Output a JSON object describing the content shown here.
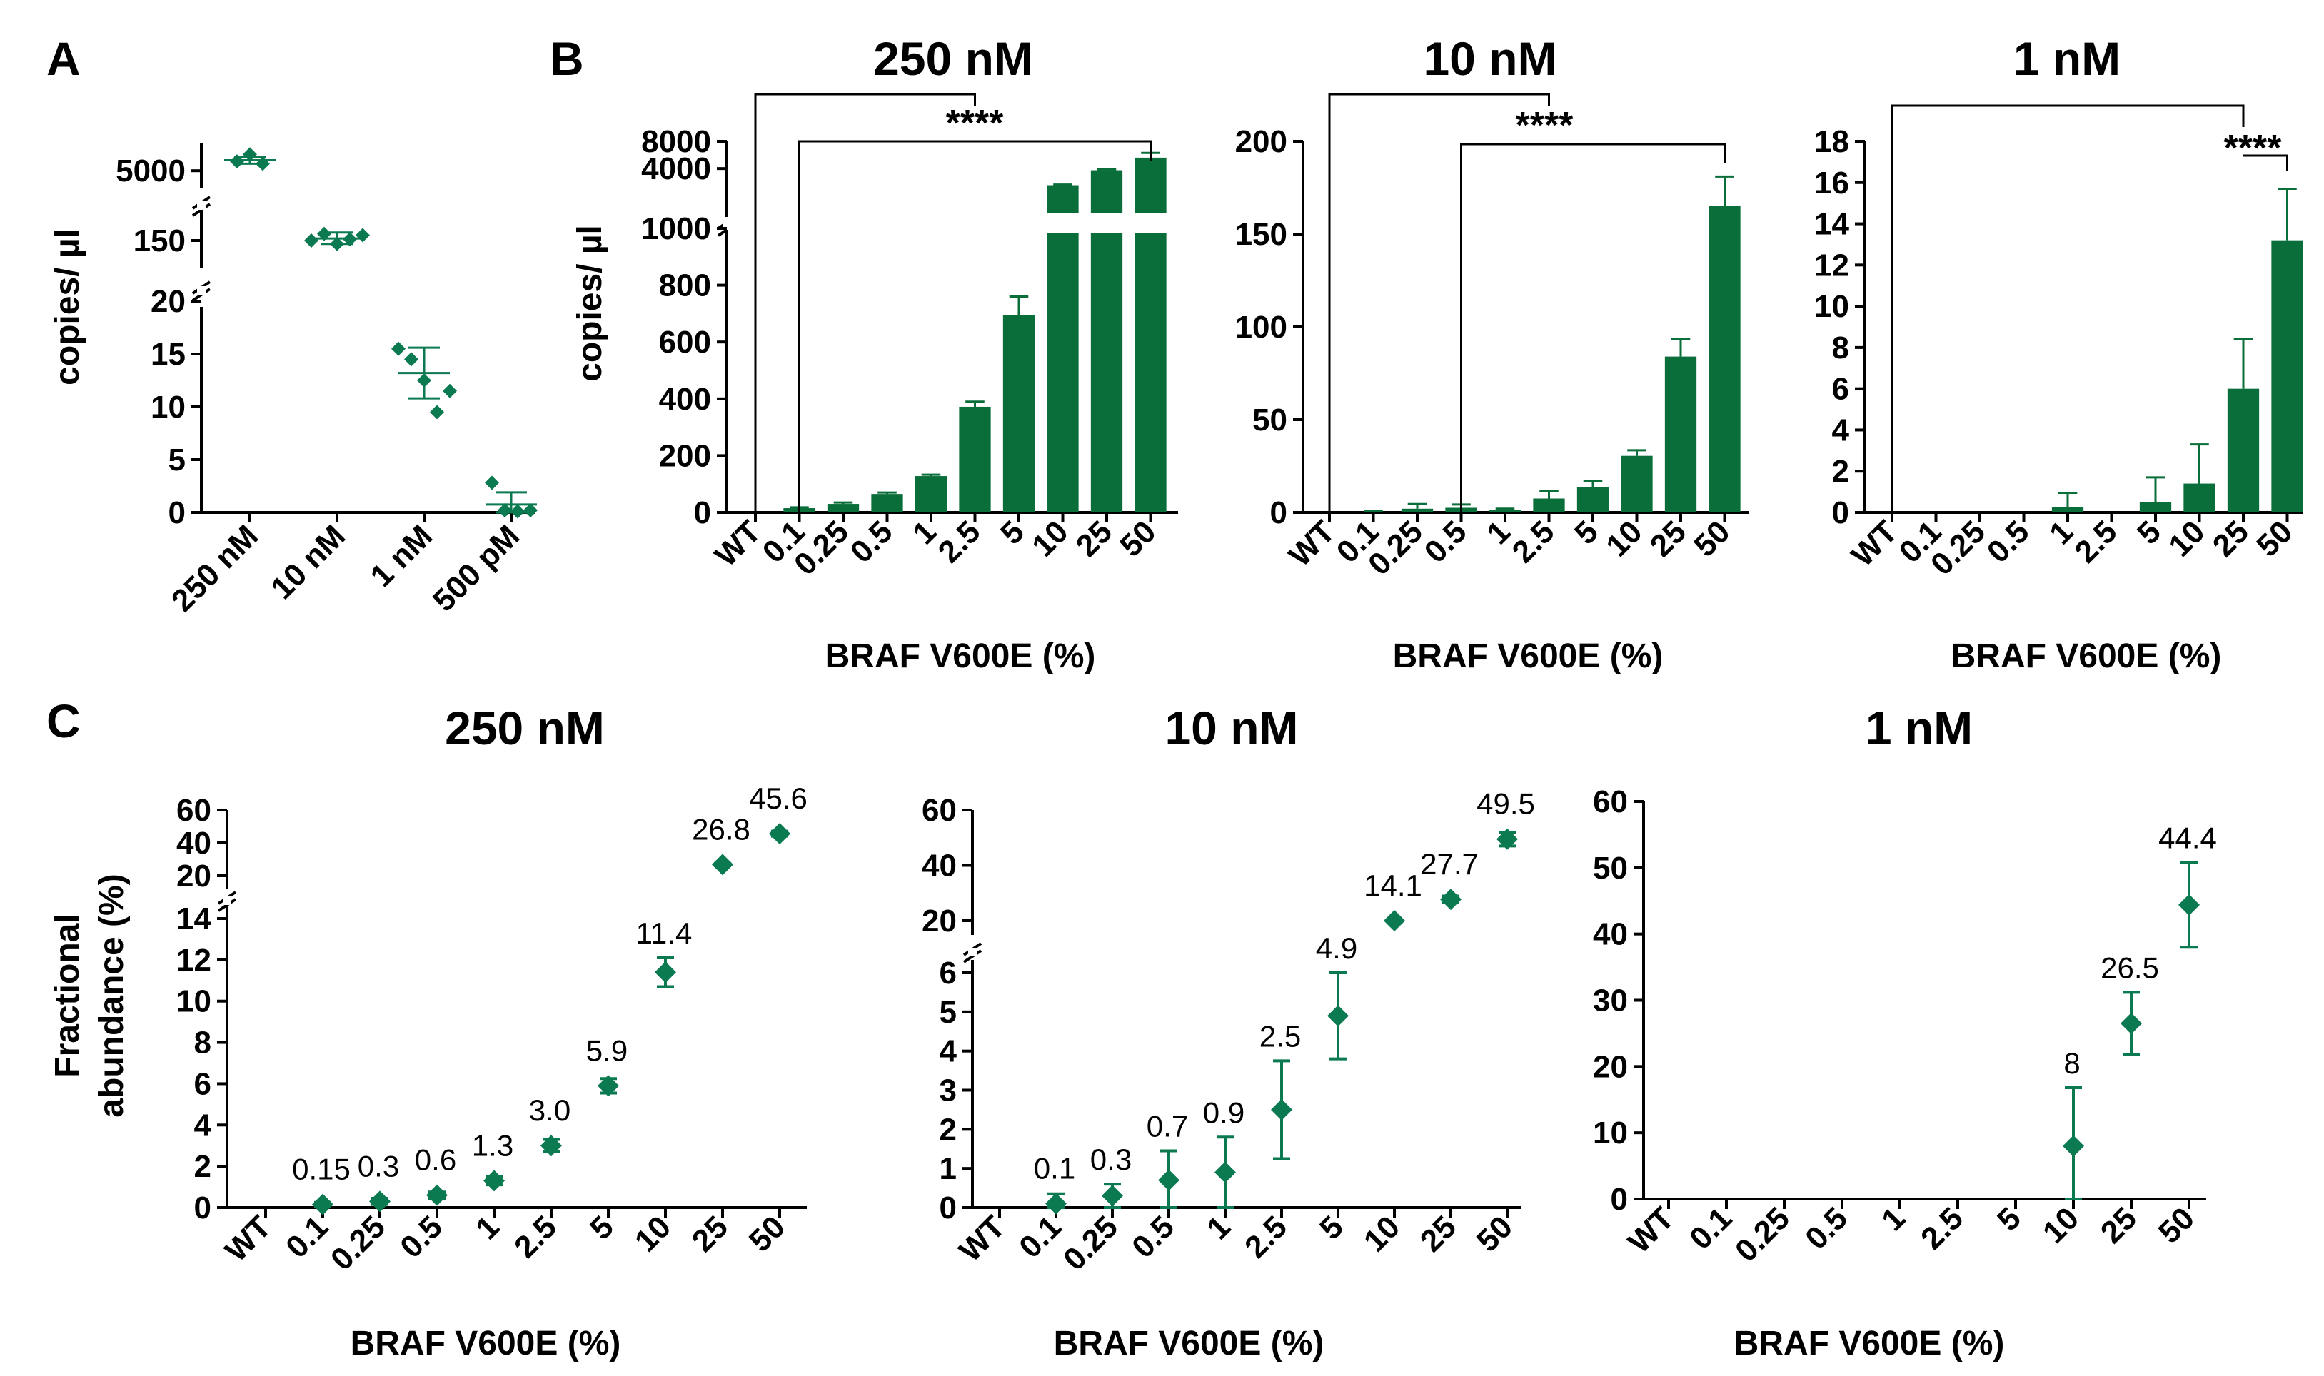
{
  "colors": {
    "bar": "#0a6e3a",
    "marker": "#0b7a50",
    "axis": "#000000"
  },
  "panel_labels": {
    "a": "A",
    "b": "B",
    "c": "C"
  },
  "chart_data": [
    {
      "id": "A",
      "type": "scatter",
      "categories": [
        "250 nM",
        "10 nM",
        "1 nM",
        "500 pM"
      ],
      "ylabel": "copies/ µl",
      "yticks": [
        "0",
        "5",
        "10",
        "15",
        "20",
        "150",
        "5000"
      ],
      "points": [
        [
          5800,
          6400,
          5600
        ],
        [
          150,
          160,
          145,
          152,
          158
        ],
        [
          15.5,
          14.5,
          12.5,
          9.5,
          11.5
        ],
        [
          2.8,
          0.2,
          0.1,
          0.2
        ]
      ],
      "mean": [
        5900,
        153,
        13.2,
        0.75
      ],
      "error": [
        [
          5600,
          6200
        ],
        [
          145,
          162
        ],
        [
          10.8,
          15.6
        ],
        [
          0,
          1.9
        ]
      ]
    },
    {
      "id": "B1",
      "type": "bar",
      "title": "250 nM",
      "categories": [
        "WT",
        "0.1",
        "0.25",
        "0.5",
        "1",
        "2.5",
        "5",
        "10",
        "25",
        "50"
      ],
      "values": [
        0.6,
        15,
        30,
        65,
        128,
        372,
        695,
        1550,
        3750,
        5600
      ],
      "errors": [
        0,
        3,
        5,
        5,
        5,
        18,
        65,
        100,
        150,
        700
      ],
      "xlabel": "BRAF V600E (%)",
      "ylabel": "copies/ µl",
      "yticks": [
        "0",
        "200",
        "400",
        "600",
        "800",
        "1000",
        "4000",
        "8000"
      ],
      "significance": "****"
    },
    {
      "id": "B2",
      "type": "bar",
      "title": "10 nM",
      "categories": [
        "WT",
        "0.1",
        "0.25",
        "0.5",
        "1",
        "2.5",
        "5",
        "10",
        "25",
        "50"
      ],
      "values": [
        0,
        0.4,
        2,
        2.5,
        1.2,
        7.5,
        13.5,
        30.5,
        84,
        165
      ],
      "errors": [
        0,
        0.4,
        2.5,
        1.8,
        0.8,
        4,
        3.5,
        3,
        9.5,
        16
      ],
      "xlabel": "BRAF V600E (%)",
      "ylabel": "",
      "yticks": [
        "0",
        "50",
        "100",
        "150",
        "200"
      ],
      "significance": "****"
    },
    {
      "id": "B3",
      "type": "bar",
      "title": "1 nM",
      "categories": [
        "WT",
        "0.1",
        "0.25",
        "0.5",
        "1",
        "2.5",
        "5",
        "10",
        "25",
        "50"
      ],
      "values": [
        0,
        0,
        0,
        0,
        0.25,
        0,
        0.5,
        1.4,
        6,
        13.2
      ],
      "errors": [
        0,
        0,
        0,
        0,
        0.7,
        0,
        1.2,
        1.9,
        2.4,
        2.5
      ],
      "xlabel": "BRAF V600E (%)",
      "ylabel": "",
      "yticks": [
        "0",
        "2",
        "4",
        "6",
        "8",
        "10",
        "12",
        "14",
        "16",
        "18"
      ],
      "significance": "****"
    },
    {
      "id": "C1",
      "type": "scatter",
      "title": "250 nM",
      "categories": [
        "WT",
        "0.1",
        "0.25",
        "0.5",
        "1",
        "2.5",
        "5",
        "10",
        "25",
        "50"
      ],
      "values": [
        null,
        0.15,
        0.3,
        0.6,
        1.3,
        3.0,
        5.9,
        11.4,
        26.8,
        45.6
      ],
      "errors": [
        0,
        0.1,
        0.15,
        0.15,
        0.2,
        0.3,
        0.35,
        0.7,
        0.7,
        1.5
      ],
      "data_labels": [
        "",
        "0.15",
        "0.3",
        "0.6",
        "1.3",
        "3.0",
        "5.9",
        "11.4",
        "26.8",
        "45.6"
      ],
      "xlabel": "BRAF V600E (%)",
      "ylabel_lines": [
        "Fractional",
        "abundance (%)"
      ],
      "yticks": [
        "0",
        "2",
        "4",
        "6",
        "8",
        "10",
        "12",
        "14",
        "20",
        "40",
        "60"
      ]
    },
    {
      "id": "C2",
      "type": "scatter",
      "title": "10 nM",
      "categories": [
        "WT",
        "0.1",
        "0.25",
        "0.5",
        "1",
        "2.5",
        "5",
        "10",
        "25",
        "50"
      ],
      "values": [
        null,
        0.1,
        0.3,
        0.7,
        0.9,
        2.5,
        4.9,
        14.1,
        27.7,
        49.5
      ],
      "errors": [
        0,
        0.25,
        0.3,
        0.75,
        0.9,
        1.25,
        1.1,
        1.7,
        1.2,
        2.5
      ],
      "data_labels": [
        "",
        "0.1",
        "0.3",
        "0.7",
        "0.9",
        "2.5",
        "4.9",
        "14.1",
        "27.7",
        "49.5"
      ],
      "xlabel": "BRAF V600E (%)",
      "yticks": [
        "0",
        "1",
        "2",
        "3",
        "4",
        "5",
        "6",
        "20",
        "40",
        "60"
      ]
    },
    {
      "id": "C3",
      "type": "scatter",
      "title": "1 nM",
      "categories": [
        "WT",
        "0.1",
        "0.25",
        "0.5",
        "1",
        "2.5",
        "5",
        "10",
        "25",
        "50"
      ],
      "values": [
        null,
        null,
        null,
        null,
        null,
        null,
        null,
        8,
        26.5,
        44.4
      ],
      "errors": [
        0,
        0,
        0,
        0,
        0,
        0,
        0,
        8.8,
        4.7,
        6.4
      ],
      "data_labels": [
        "",
        "",
        "",
        "",
        "",
        "",
        "",
        "8",
        "26.5",
        "44.4"
      ],
      "xlabel": "BRAF V600E (%)",
      "yticks": [
        "0",
        "10",
        "20",
        "30",
        "40",
        "50",
        "60"
      ]
    }
  ]
}
